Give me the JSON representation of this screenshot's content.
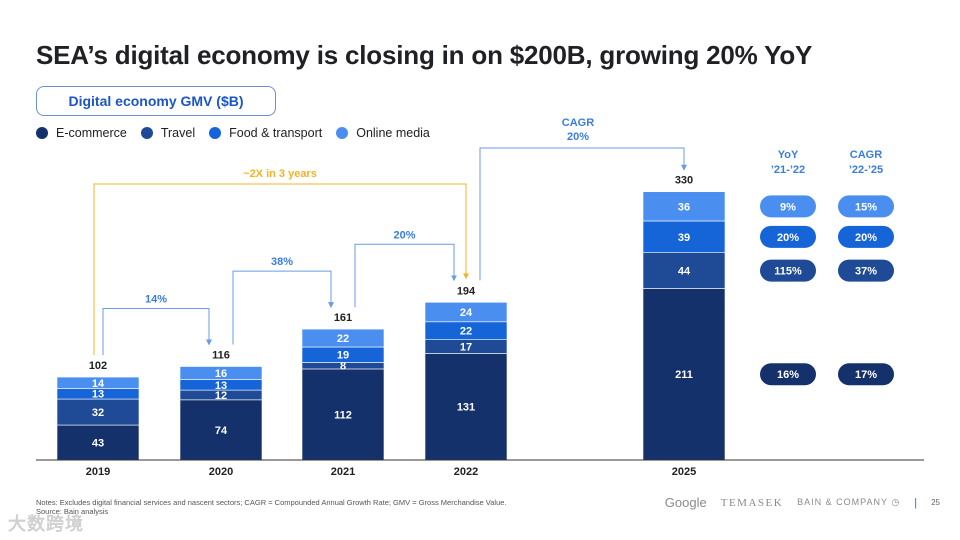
{
  "title": "SEA’s digital economy is closing in on $200B, growing 20% YoY",
  "subtitle": "Digital economy GMV ($B)",
  "colors": {
    "ecommerce": "#15316c",
    "travel": "#1f4a96",
    "food": "#1565d8",
    "media": "#4a8ff0",
    "arrow_blue": "#6a9be6",
    "arrow_orange": "#f4b324",
    "label_blue": "#3b7ddd"
  },
  "legend": [
    {
      "label": "E-commerce",
      "color": "#15316c"
    },
    {
      "label": "Travel",
      "color": "#1f4a96"
    },
    {
      "label": "Food & transport",
      "color": "#1565d8"
    },
    {
      "label": "Online media",
      "color": "#4a8ff0"
    }
  ],
  "chart_data": {
    "type": "bar",
    "stacked": true,
    "categories": [
      "2019",
      "2020",
      "2021",
      "2022",
      "2025"
    ],
    "totals": [
      102,
      116,
      161,
      194,
      330
    ],
    "series": [
      {
        "name": "E-commerce",
        "values": [
          43,
          74,
          112,
          131,
          211
        ]
      },
      {
        "name": "Travel",
        "values": [
          32,
          12,
          8,
          17,
          44
        ]
      },
      {
        "name": "Food & transport",
        "values": [
          13,
          13,
          19,
          22,
          39
        ]
      },
      {
        "name": "Online media",
        "values": [
          14,
          16,
          22,
          24,
          36
        ]
      }
    ],
    "annotations": {
      "growth": [
        "14%",
        "38%",
        "20%"
      ],
      "two_x": "~2X in 3 years",
      "cagr_label": "CAGR",
      "cagr_value": "20%"
    },
    "side_table": {
      "col1_header": [
        "YoY",
        "’21-’22"
      ],
      "col2_header": [
        "CAGR",
        "’22-’25"
      ],
      "rows": [
        {
          "series": "Online media",
          "yoy": "9%",
          "cagr": "15%"
        },
        {
          "series": "Food & transport",
          "yoy": "20%",
          "cagr": "20%"
        },
        {
          "series": "Travel",
          "yoy": "115%",
          "cagr": "37%"
        },
        {
          "series": "E-commerce",
          "yoy": "16%",
          "cagr": "17%"
        }
      ]
    }
  },
  "footer": {
    "notes": "Notes: Excludes digital financial services and nascent sectors; CAGR = Compounded Annual Growth Rate; GMV = Gross Merchandise Value.",
    "source": "Source: Bain analysis",
    "watermark": "大数跨境",
    "logos": [
      "Google",
      "TEMASEK",
      "BAIN & COMPANY"
    ],
    "page": "25"
  }
}
